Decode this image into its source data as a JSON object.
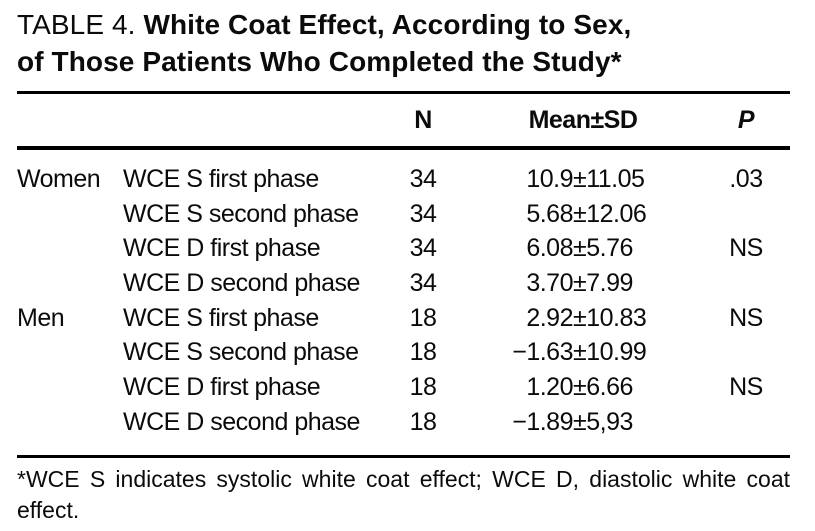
{
  "title": {
    "prefix": "TABLE 4.",
    "line1": "White Coat Effect, According to Sex,",
    "line2": "of Those Patients Who Completed the Study*"
  },
  "columns": {
    "n": "N",
    "mean_sd": "Mean±SD",
    "p": "P"
  },
  "rows": [
    {
      "sex": "Women",
      "measure": "WCE S first phase",
      "n": "34",
      "mean": "10.9",
      "pm": "±",
      "sd": "11.05",
      "p": ".03"
    },
    {
      "sex": "",
      "measure": "WCE S second phase",
      "n": "34",
      "mean": "5.68",
      "pm": "±",
      "sd": "12.06",
      "p": ""
    },
    {
      "sex": "",
      "measure": "WCE D first phase",
      "n": "34",
      "mean": "6.08",
      "pm": "±",
      "sd": "5.76",
      "p": "NS"
    },
    {
      "sex": "",
      "measure": "WCE D second phase",
      "n": "34",
      "mean": "3.70",
      "pm": "±",
      "sd": "7.99",
      "p": ""
    },
    {
      "sex": "Men",
      "measure": "WCE S first phase",
      "n": "18",
      "mean": "2.92",
      "pm": "±",
      "sd": "10.83",
      "p": "NS"
    },
    {
      "sex": "",
      "measure": "WCE S second phase",
      "n": "18",
      "mean": "−1.63",
      "pm": "±",
      "sd": "10.99",
      "p": ""
    },
    {
      "sex": "",
      "measure": "WCE D first phase",
      "n": "18",
      "mean": "1.20",
      "pm": "±",
      "sd": "6.66",
      "p": "NS"
    },
    {
      "sex": "",
      "measure": "WCE D second phase",
      "n": "18",
      "mean": "−1.89",
      "pm": "±",
      "sd": "5,93",
      "p": ""
    }
  ],
  "footnote": "*WCE S indicates systolic white coat effect; WCE D, diastolic white coat effect.",
  "colors": {
    "text": "#0b0b0b",
    "rule": "#000000",
    "background": "#ffffff"
  }
}
